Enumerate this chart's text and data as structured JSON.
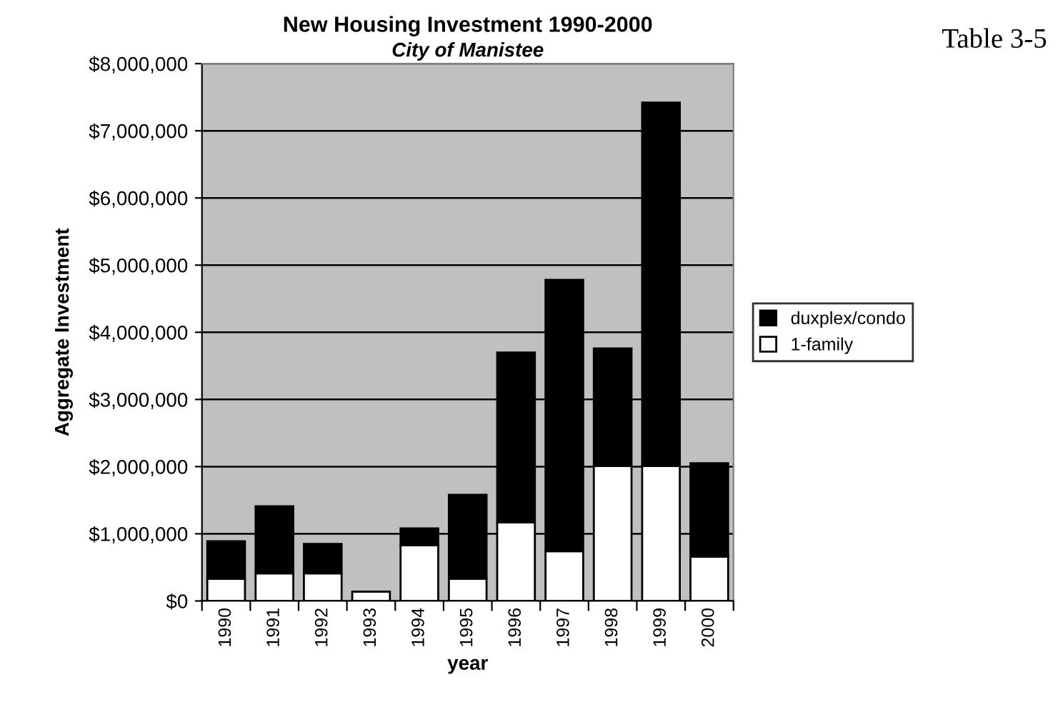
{
  "chart_data": {
    "type": "bar",
    "stacked": true,
    "title": "New Housing Investment 1990-2000",
    "subtitle": "City of Manistee",
    "xlabel": "year",
    "ylabel": "Aggregate Investment",
    "annotations": [
      "Table 3-5"
    ],
    "categories": [
      "1990",
      "1991",
      "1992",
      "1993",
      "1994",
      "1995",
      "1996",
      "1997",
      "1998",
      "1999",
      "2000"
    ],
    "series": [
      {
        "name": "1-family",
        "color": "#ffffff",
        "values": [
          330000,
          410000,
          410000,
          140000,
          830000,
          330000,
          1170000,
          740000,
          2010000,
          2010000,
          660000
        ]
      },
      {
        "name": "duxplex/condo",
        "color": "#000000",
        "values": [
          560000,
          1000000,
          440000,
          0,
          250000,
          1250000,
          2530000,
          4040000,
          1750000,
          5410000,
          1390000
        ]
      }
    ],
    "ylim": [
      0,
      8000000
    ],
    "yticks": [
      {
        "value": 0,
        "label": "$0"
      },
      {
        "value": 1000000,
        "label": "$1,000,000"
      },
      {
        "value": 2000000,
        "label": "$2,000,000"
      },
      {
        "value": 3000000,
        "label": "$3,000,000"
      },
      {
        "value": 4000000,
        "label": "$4,000,000"
      },
      {
        "value": 5000000,
        "label": "$5,000,000"
      },
      {
        "value": 6000000,
        "label": "$6,000,000"
      },
      {
        "value": 7000000,
        "label": "$7,000,000"
      },
      {
        "value": 8000000,
        "label": "$8,000,000"
      }
    ],
    "grid": "y",
    "legend": "right"
  }
}
